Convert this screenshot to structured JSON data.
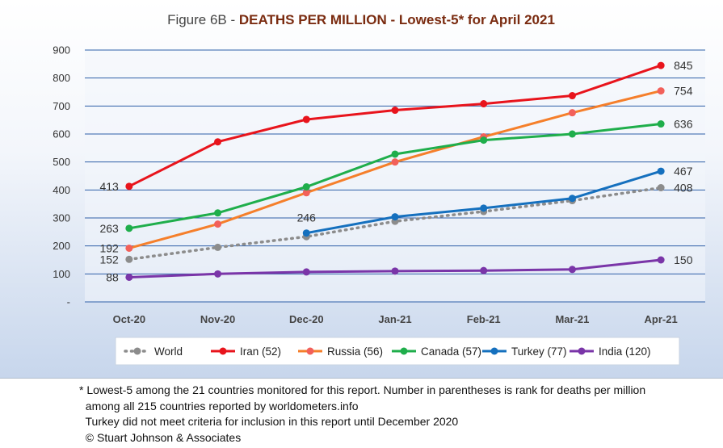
{
  "chart_data": {
    "type": "line",
    "title_prefix": "Figure 6B - ",
    "title_bold": "DEATHS PER MILLION - Lowest-5* for April 2021",
    "categories": [
      "Oct-20",
      "Nov-20",
      "Dec-20",
      "Jan-21",
      "Feb-21",
      "Mar-21",
      "Apr-21"
    ],
    "ylim": [
      0,
      900
    ],
    "yticks": [
      "-",
      "100",
      "200",
      "300",
      "400",
      "500",
      "600",
      "700",
      "800",
      "900"
    ],
    "ytick_values": [
      0,
      100,
      200,
      300,
      400,
      500,
      600,
      700,
      800,
      900
    ],
    "grid": true,
    "legend_position": "bottom",
    "series": [
      {
        "name": "World",
        "color": "#8c8c8c",
        "dashed": true,
        "values": [
          152,
          195,
          233,
          288,
          323,
          362,
          408
        ],
        "labels": {
          "0": "152",
          "6": "408"
        }
      },
      {
        "name": "Iran (52)",
        "color": "#e8141c",
        "values": [
          413,
          572,
          652,
          685,
          708,
          737,
          845
        ],
        "labels": {
          "0": "413",
          "6": "845"
        }
      },
      {
        "name": "Russia (56)",
        "color": "#f57f2b",
        "marker": "#f2605a",
        "values": [
          192,
          278,
          390,
          500,
          590,
          676,
          754
        ],
        "labels": {
          "0": "192",
          "6": "754"
        }
      },
      {
        "name": "Canada (57)",
        "color": "#1fae4b",
        "values": [
          263,
          318,
          411,
          528,
          578,
          600,
          636
        ],
        "labels": {
          "0": "263",
          "6": "636"
        }
      },
      {
        "name": "Turkey (77)",
        "color": "#1570be",
        "values": [
          null,
          null,
          246,
          304,
          335,
          370,
          467
        ],
        "labels": {
          "2": "246",
          "6": "467"
        }
      },
      {
        "name": "India (120)",
        "color": "#7a35a8",
        "values": [
          88,
          100,
          107,
          110,
          112,
          116,
          150
        ],
        "labels": {
          "0": "88",
          "6": "150"
        }
      }
    ]
  },
  "footnotes": {
    "line1": "* Lowest-5 among the 21 countries monitored for this report. Number in parentheses is rank for deaths per million",
    "line2": "  among all 215 countries reported by worldometers.info",
    "line3": "  Turkey did not meet criteria for inclusion in this report until December 2020",
    "line4": "  © Stuart Johnson & Associates"
  }
}
